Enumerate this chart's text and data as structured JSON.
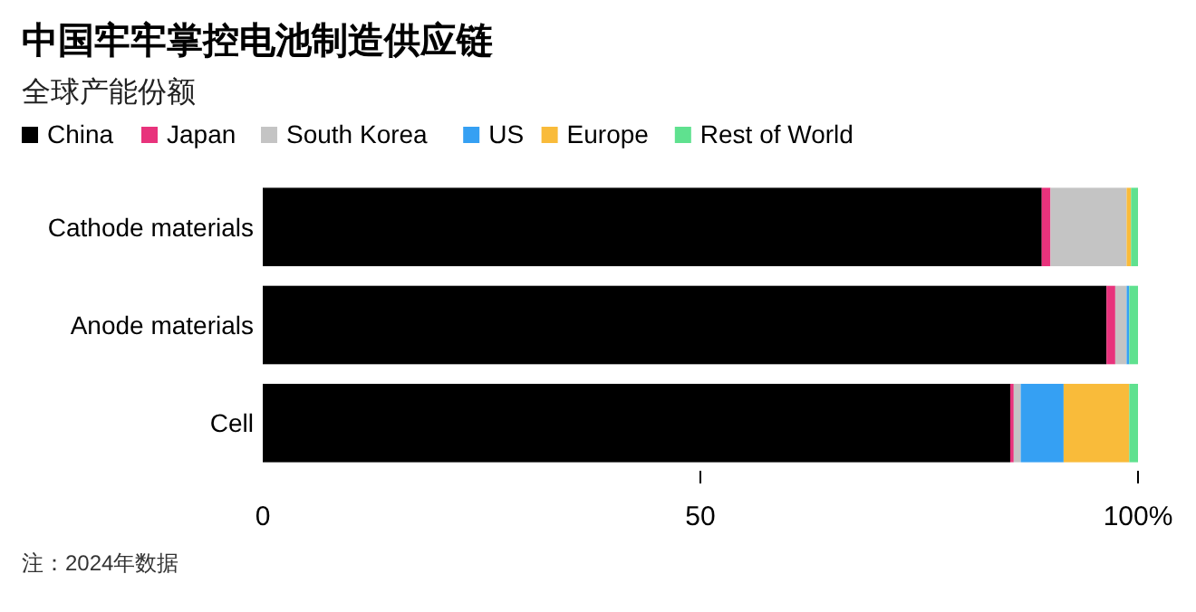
{
  "chart_data": {
    "type": "bar",
    "orientation": "horizontal",
    "stacked": true,
    "title": "中国牢牢掌控电池制造供应链",
    "subtitle": "全球产能份额",
    "categories": [
      "Cathode materials",
      "Anode materials",
      "Cell"
    ],
    "series": [
      {
        "name": "China",
        "color": "#000000",
        "values": [
          89.0,
          96.4,
          85.4
        ]
      },
      {
        "name": "Japan",
        "color": "#e8337c",
        "values": [
          1.0,
          1.0,
          0.4
        ]
      },
      {
        "name": "South Korea",
        "color": "#c4c4c4",
        "values": [
          8.7,
          1.3,
          0.8
        ]
      },
      {
        "name": "US",
        "color": "#35a0f3",
        "values": [
          0,
          0.3,
          4.9
        ]
      },
      {
        "name": "Europe",
        "color": "#f9bb3a",
        "values": [
          0.5,
          0,
          7.5
        ]
      },
      {
        "name": "Rest of World",
        "color": "#5fe18f",
        "values": [
          0.8,
          1.0,
          1.0
        ]
      }
    ],
    "xlim": [
      0,
      100
    ],
    "xticks": [
      0,
      50,
      {
        "value": 100,
        "label": "100%"
      }
    ],
    "legend": "top left",
    "grid": false,
    "annotations": [
      "注：2024年数据"
    ]
  }
}
